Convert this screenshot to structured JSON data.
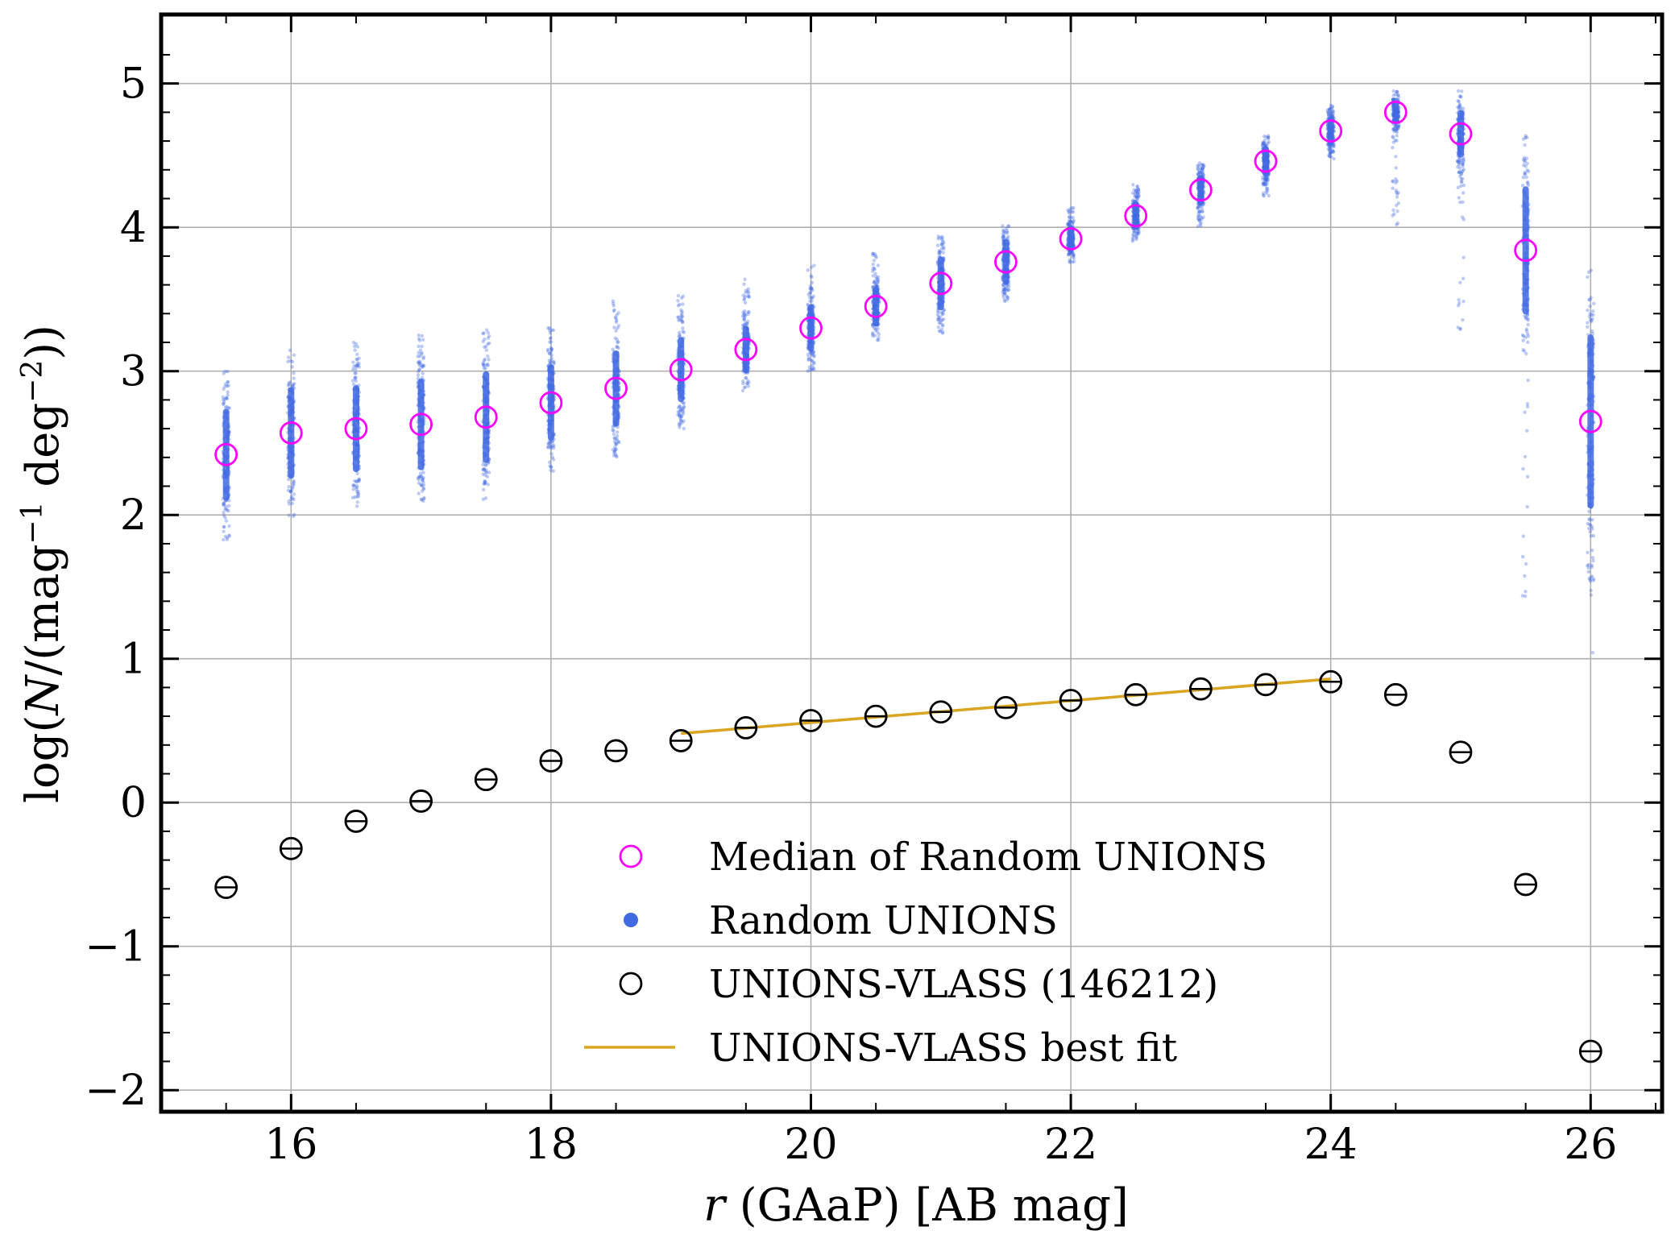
{
  "chart_data": {
    "type": "scatter",
    "xlabel": "r (GAaP) [AB mag]",
    "ylabel": "log(N/(mag⁻¹ deg⁻²))",
    "xlim": [
      15.0,
      26.55
    ],
    "ylim": [
      -2.15,
      5.48
    ],
    "xticks": [
      16,
      18,
      20,
      22,
      24,
      26
    ],
    "yticks": [
      -2,
      -1,
      0,
      1,
      2,
      3,
      4,
      5
    ],
    "xtick_labels": [
      "16",
      "18",
      "20",
      "22",
      "24",
      "26"
    ],
    "ytick_labels": [
      "−2",
      "−1",
      "0",
      "1",
      "2",
      "3",
      "4",
      "5"
    ],
    "grid": true,
    "legend_position": "lower-center",
    "series": [
      {
        "name": "Median of Random UNIONS",
        "marker": "open-circle",
        "color": "#ff00ff",
        "x": [
          15.5,
          16.0,
          16.5,
          17.0,
          17.5,
          18.0,
          18.5,
          19.0,
          19.5,
          20.0,
          20.5,
          21.0,
          21.5,
          22.0,
          22.5,
          23.0,
          23.5,
          24.0,
          24.5,
          25.0,
          25.5,
          26.0
        ],
        "y": [
          2.42,
          2.57,
          2.6,
          2.63,
          2.68,
          2.78,
          2.88,
          3.01,
          3.15,
          3.3,
          3.45,
          3.61,
          3.76,
          3.92,
          4.08,
          4.26,
          4.46,
          4.67,
          4.8,
          4.65,
          3.84,
          2.65
        ]
      },
      {
        "name": "Random UNIONS",
        "marker": "filled-dot",
        "color": "#4169e1",
        "x": [
          15.5,
          16.0,
          16.5,
          17.0,
          17.5,
          18.0,
          18.5,
          19.0,
          19.5,
          20.0,
          20.5,
          21.0,
          21.5,
          22.0,
          22.5,
          23.0,
          23.5,
          24.0,
          24.5,
          25.0,
          25.5,
          26.0
        ],
        "y_low": [
          1.8,
          1.95,
          2.05,
          2.05,
          2.1,
          2.3,
          2.4,
          2.6,
          2.85,
          3.0,
          3.2,
          3.25,
          3.45,
          3.75,
          3.9,
          4.0,
          4.2,
          4.45,
          4.0,
          3.2,
          1.3,
          1.0
        ],
        "y_high": [
          3.0,
          3.15,
          3.25,
          3.25,
          3.3,
          3.3,
          3.5,
          3.55,
          3.65,
          3.75,
          3.85,
          3.95,
          4.05,
          4.15,
          4.3,
          4.45,
          4.65,
          4.85,
          4.95,
          4.95,
          4.65,
          3.75
        ]
      },
      {
        "name": "UNIONS-VLASS (146212)",
        "marker": "open-circle",
        "color": "#000000",
        "x": [
          15.5,
          16.0,
          16.5,
          17.0,
          17.5,
          18.0,
          18.5,
          19.0,
          19.5,
          20.0,
          20.5,
          21.0,
          21.5,
          22.0,
          22.5,
          23.0,
          23.5,
          24.0,
          24.5,
          25.0,
          25.5,
          26.0
        ],
        "y": [
          -0.59,
          -0.32,
          -0.13,
          0.01,
          0.16,
          0.29,
          0.36,
          0.43,
          0.52,
          0.57,
          0.6,
          0.63,
          0.66,
          0.71,
          0.75,
          0.79,
          0.82,
          0.84,
          0.75,
          0.35,
          -0.57,
          -1.73
        ]
      },
      {
        "name": "UNIONS-VLASS best fit",
        "marker": "line",
        "color": "#daa520",
        "x": [
          19.0,
          24.0
        ],
        "y": [
          0.48,
          0.86
        ]
      }
    ]
  }
}
